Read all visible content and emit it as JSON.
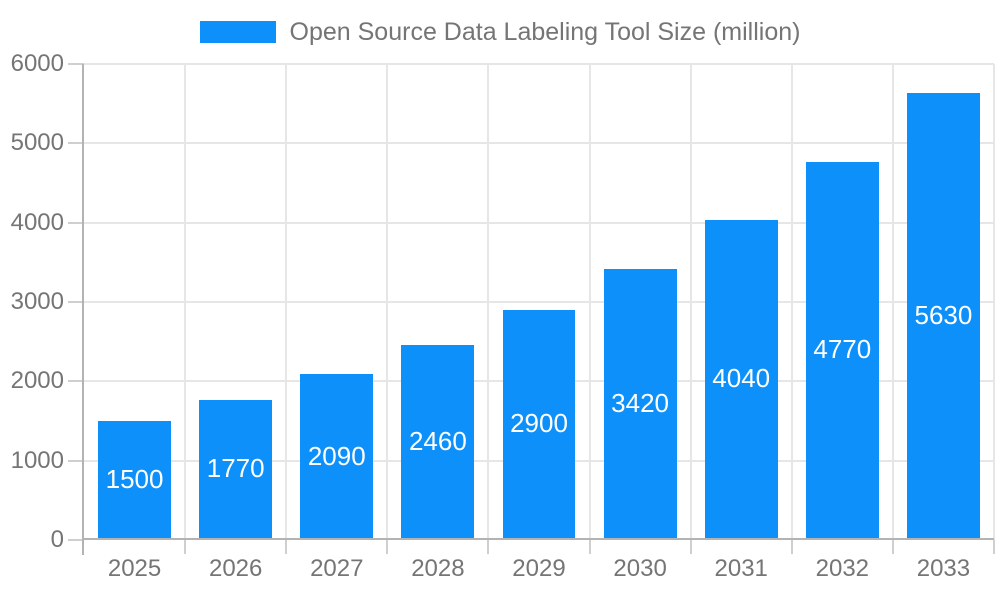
{
  "page": {
    "background": "#ffffff"
  },
  "legend": {
    "label": "Open Source Data Labeling Tool Size (million)"
  },
  "chart_data": {
    "type": "bar",
    "title": "Open Source Data Labeling Tool Size (million)",
    "categories": [
      "2025",
      "2026",
      "2027",
      "2028",
      "2029",
      "2030",
      "2031",
      "2032",
      "2033"
    ],
    "series": [
      {
        "name": "Open Source Data Labeling Tool Size (million)",
        "values": [
          1500,
          1770,
          2090,
          2460,
          2900,
          3420,
          4040,
          4770,
          5630
        ],
        "color": "#0E90FA"
      }
    ],
    "xlabel": "",
    "ylabel": "",
    "ylim": [
      0,
      6000
    ],
    "y_ticks": [
      0,
      1000,
      2000,
      3000,
      4000,
      5000,
      6000
    ],
    "grid": {
      "horizontal": true,
      "vertical": true
    },
    "legend_position": "top-center",
    "value_labels": {
      "visible": true,
      "position": "inside-center",
      "color": "#ffffff"
    }
  },
  "style": {
    "bar_color": "#0E90FA",
    "grid_color": "#E6E6E6",
    "tick_color": "#CFCFCF",
    "axis_color": "#B3B3B3",
    "text_color": "#757575",
    "bar_label_color": "#FFFFFF"
  }
}
